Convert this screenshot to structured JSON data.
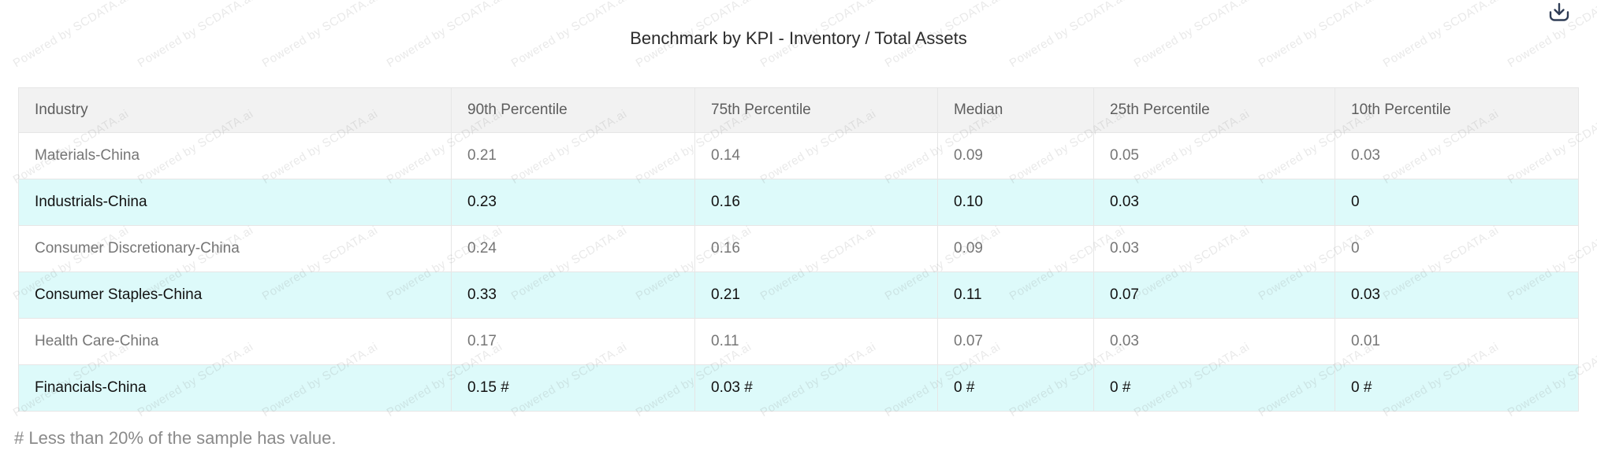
{
  "title": "Benchmark by KPI - Inventory / Total Assets",
  "footnote": "# Less than 20% of the sample has value.",
  "watermark": {
    "text": "Powered by SCDATA.ai"
  },
  "toolbar": {
    "download_icon": "download-tray-arrow"
  },
  "colors": {
    "highlight_row_bg": "#ddfafa",
    "header_bg": "#f2f2f2",
    "normal_row_text": "#767676",
    "highlight_row_text": "#121212",
    "border": "#e6e6e6",
    "download_icon": "#2f3d56",
    "watermark_text": "rgba(110,110,110,0.15)"
  },
  "chart_data": {
    "type": "table",
    "title": "Benchmark by KPI - Inventory / Total Assets",
    "columns": [
      "Industry",
      "90th Percentile",
      "75th Percentile",
      "Median",
      "25th Percentile",
      "10th Percentile"
    ],
    "rows": [
      {
        "industry": "Materials-China",
        "values": [
          "0.21",
          "0.14",
          "0.09",
          "0.05",
          "0.03"
        ],
        "highlighted": false
      },
      {
        "industry": "Industrials-China",
        "values": [
          "0.23",
          "0.16",
          "0.10",
          "0.03",
          "0"
        ],
        "highlighted": true
      },
      {
        "industry": "Consumer Discretionary-China",
        "values": [
          "0.24",
          "0.16",
          "0.09",
          "0.03",
          "0"
        ],
        "highlighted": false
      },
      {
        "industry": "Consumer Staples-China",
        "values": [
          "0.33",
          "0.21",
          "0.11",
          "0.07",
          "0.03"
        ],
        "highlighted": true
      },
      {
        "industry": "Health Care-China",
        "values": [
          "0.17",
          "0.11",
          "0.07",
          "0.03",
          "0.01"
        ],
        "highlighted": false
      },
      {
        "industry": "Financials-China",
        "values": [
          "0.15 #",
          "0.03 #",
          "0 #",
          "0 #",
          "0 #"
        ],
        "highlighted": true
      }
    ],
    "footnote": "# Less than 20% of the sample has value."
  }
}
